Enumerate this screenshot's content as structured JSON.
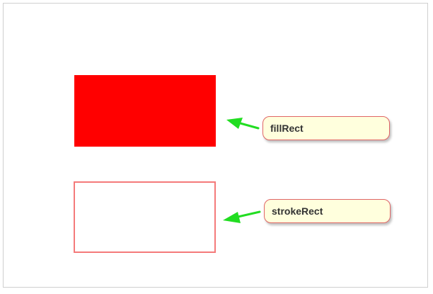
{
  "shapes": {
    "filled": {
      "color": "#ff0000"
    },
    "stroked": {
      "color": "#f47a7a"
    }
  },
  "callouts": {
    "fill_rect": {
      "label": "fillRect"
    },
    "stroke_rect": {
      "label": "strokeRect"
    }
  },
  "colors": {
    "arrow": "#22dd22",
    "callout_bg": "#ffffdd",
    "callout_border": "#e06666"
  }
}
